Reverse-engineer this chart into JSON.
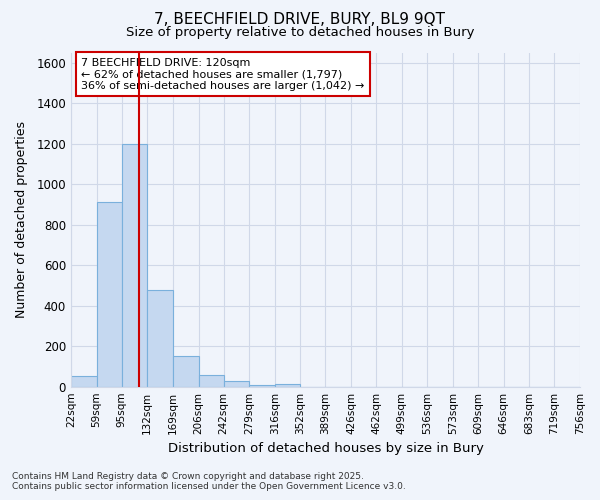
{
  "title_line1": "7, BEECHFIELD DRIVE, BURY, BL9 9QT",
  "title_line2": "Size of property relative to detached houses in Bury",
  "xlabel": "Distribution of detached houses by size in Bury",
  "ylabel": "Number of detached properties",
  "bar_edges": [
    22,
    59,
    95,
    132,
    169,
    206,
    242,
    279,
    316,
    352,
    389,
    426,
    462,
    499,
    536,
    573,
    609,
    646,
    683,
    719,
    756
  ],
  "bar_heights": [
    55,
    910,
    1200,
    475,
    150,
    60,
    30,
    10,
    15,
    0,
    0,
    0,
    0,
    0,
    0,
    0,
    0,
    0,
    0,
    0
  ],
  "bar_color": "#c5d8f0",
  "bar_edgecolor": "#7ab0dc",
  "background_color": "#f0f4fb",
  "grid_color": "#d0d8e8",
  "ylim": [
    0,
    1650
  ],
  "yticks": [
    0,
    200,
    400,
    600,
    800,
    1000,
    1200,
    1400,
    1600
  ],
  "property_size": 120,
  "red_line_color": "#cc0000",
  "annotation_text": "7 BEECHFIELD DRIVE: 120sqm\n← 62% of detached houses are smaller (1,797)\n36% of semi-detached houses are larger (1,042) →",
  "annotation_box_color": "#ffffff",
  "annotation_box_edgecolor": "#cc0000",
  "footnote_line1": "Contains HM Land Registry data © Crown copyright and database right 2025.",
  "footnote_line2": "Contains public sector information licensed under the Open Government Licence v3.0.",
  "tick_labels": [
    "22sqm",
    "59sqm",
    "95sqm",
    "132sqm",
    "169sqm",
    "206sqm",
    "242sqm",
    "279sqm",
    "316sqm",
    "352sqm",
    "389sqm",
    "426sqm",
    "462sqm",
    "499sqm",
    "536sqm",
    "573sqm",
    "609sqm",
    "646sqm",
    "683sqm",
    "719sqm",
    "756sqm"
  ],
  "title_fontsize": 11,
  "subtitle_fontsize": 9.5,
  "ylabel_fontsize": 9,
  "xlabel_fontsize": 9.5
}
